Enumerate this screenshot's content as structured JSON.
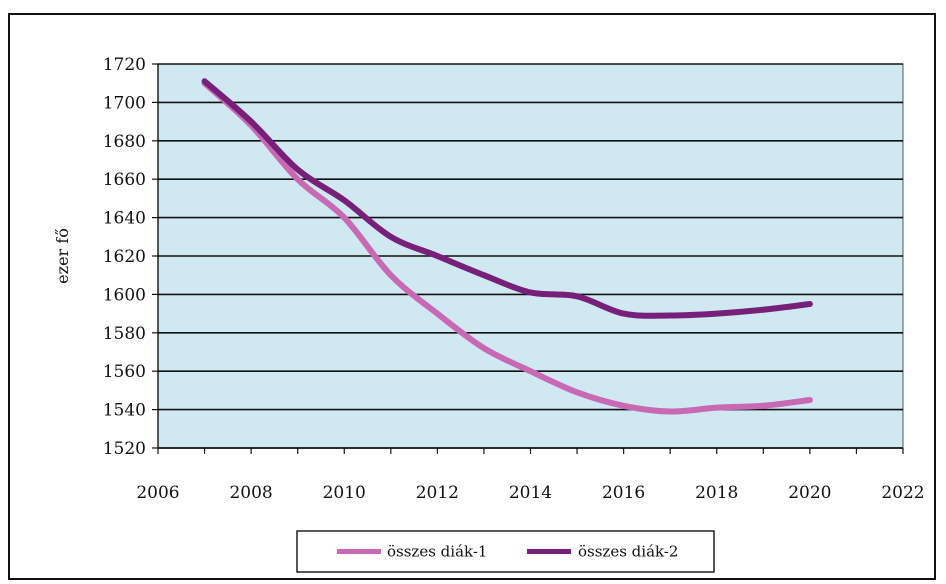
{
  "chart_data": {
    "type": "line",
    "title": "",
    "xlabel": "",
    "ylabel": "ezer fő",
    "xlim": [
      2006,
      2022
    ],
    "ylim": [
      1520,
      1720
    ],
    "x_ticks": [
      2006,
      2008,
      2010,
      2012,
      2014,
      2016,
      2018,
      2020,
      2022
    ],
    "y_ticks": [
      1520,
      1540,
      1560,
      1580,
      1600,
      1620,
      1640,
      1660,
      1680,
      1700,
      1720
    ],
    "grid": true,
    "legend_position": "bottom",
    "series": [
      {
        "name": "összes diák-1",
        "color": "#c869b3",
        "x": [
          2007,
          2008,
          2009,
          2010,
          2011,
          2012,
          2013,
          2014,
          2015,
          2016,
          2017,
          2018,
          2019,
          2020
        ],
        "values": [
          1710,
          1688,
          1660,
          1640,
          1610,
          1590,
          1572,
          1560,
          1549,
          1542,
          1539,
          1541,
          1542,
          1545
        ]
      },
      {
        "name": "összes diák-2",
        "color": "#77207a",
        "x": [
          2007,
          2008,
          2009,
          2010,
          2011,
          2012,
          2013,
          2014,
          2015,
          2016,
          2017,
          2018,
          2019,
          2020
        ],
        "values": [
          1711,
          1690,
          1665,
          1649,
          1630,
          1620,
          1610,
          1601,
          1599,
          1590,
          1589,
          1590,
          1592,
          1595
        ]
      }
    ]
  }
}
